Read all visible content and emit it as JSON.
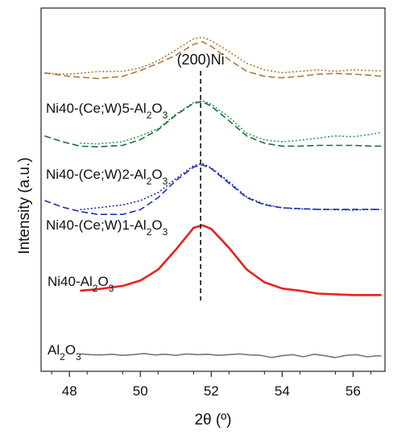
{
  "chart_data": {
    "type": "line",
    "xlabel": "2θ (º)",
    "ylabel": "Intensity (a.u.)",
    "xlim": [
      47.2,
      56.9
    ],
    "xticks": [
      48,
      50,
      52,
      54,
      56
    ],
    "y_ticks_labeled": false,
    "grid": false,
    "legend": "none (labels placed next to curves)",
    "reference_line": {
      "label": "(200)Ni",
      "x": 51.7,
      "style": "dashed"
    },
    "series": [
      {
        "name": "Ni40-(Ce;W)5-Al₂O₃",
        "traces": [
          {
            "style": "dotted",
            "color": "#b07a3a",
            "x": [
              47.3,
              48.0,
              48.8,
              49.5,
              50.0,
              50.5,
              51.0,
              51.5,
              51.75,
              52.0,
              52.5,
              53.0,
              53.5,
              54.0,
              54.5,
              55.0,
              55.5,
              56.0,
              56.5,
              56.8
            ],
            "y": [
              0.82,
              0.818,
              0.825,
              0.826,
              0.835,
              0.855,
              0.885,
              0.915,
              0.92,
              0.91,
              0.88,
              0.848,
              0.83,
              0.822,
              0.826,
              0.83,
              0.826,
              0.83,
              0.828,
              0.827
            ]
          },
          {
            "style": "dashed",
            "color": "#b07a3a",
            "x": [
              47.3,
              48.0,
              48.8,
              49.5,
              50.0,
              50.5,
              51.0,
              51.5,
              51.75,
              52.0,
              52.5,
              53.0,
              53.5,
              54.0,
              54.5,
              55.0,
              55.5,
              56.0,
              56.5,
              56.8
            ],
            "y": [
              0.822,
              0.812,
              0.806,
              0.812,
              0.828,
              0.848,
              0.87,
              0.9,
              0.907,
              0.895,
              0.858,
              0.826,
              0.812,
              0.808,
              0.812,
              0.818,
              0.82,
              0.818,
              0.815,
              0.812
            ]
          }
        ]
      },
      {
        "name": "Ni40-(Ce;W)2-Al₂O₃",
        "traces": [
          {
            "style": "dotted",
            "color": "#2e9c4e",
            "x": [
              48.3,
              48.8,
              49.5,
              50.0,
              50.5,
              51.0,
              51.5,
              51.75,
              52.0,
              52.5,
              53.0,
              53.5,
              54.0,
              54.5,
              55.0,
              55.5,
              56.0,
              56.5,
              56.8
            ],
            "y": [
              0.628,
              0.626,
              0.632,
              0.648,
              0.668,
              0.708,
              0.74,
              0.745,
              0.735,
              0.7,
              0.655,
              0.637,
              0.632,
              0.636,
              0.642,
              0.648,
              0.646,
              0.652,
              0.658
            ]
          },
          {
            "style": "dashed",
            "color": "#1e6e3a",
            "x": [
              47.3,
              47.8,
              48.3,
              48.8,
              49.5,
              50.0,
              50.5,
              51.0,
              51.5,
              51.75,
              52.0,
              52.5,
              53.0,
              53.5,
              54.0,
              54.5,
              55.0,
              55.5,
              56.0,
              56.5,
              56.8
            ],
            "y": [
              0.648,
              0.632,
              0.62,
              0.618,
              0.622,
              0.638,
              0.665,
              0.705,
              0.738,
              0.742,
              0.73,
              0.69,
              0.648,
              0.628,
              0.62,
              0.62,
              0.622,
              0.622,
              0.622,
              0.62,
              0.62
            ]
          }
        ]
      },
      {
        "name": "Ni40-(Ce;W)1-Al₂O₃",
        "traces": [
          {
            "style": "dotted",
            "color": "#1f2fb8",
            "x": [
              48.3,
              48.8,
              49.5,
              50.0,
              50.5,
              51.0,
              51.5,
              51.75,
              52.0,
              52.5,
              53.0,
              53.5,
              54.0,
              54.5,
              55.0,
              55.5,
              56.0,
              56.5,
              56.8
            ],
            "y": [
              0.445,
              0.45,
              0.458,
              0.47,
              0.492,
              0.53,
              0.566,
              0.572,
              0.56,
              0.522,
              0.48,
              0.46,
              0.45,
              0.447,
              0.446,
              0.445,
              0.444,
              0.446,
              0.445
            ]
          },
          {
            "style": "dashed",
            "color": "#1f2fb8",
            "x": [
              47.3,
              47.8,
              48.3,
              48.8,
              49.5,
              50.0,
              50.5,
              51.0,
              51.5,
              51.75,
              52.0,
              52.5,
              53.0,
              53.5,
              54.0,
              54.5,
              55.0,
              55.5,
              56.0,
              56.5,
              56.8
            ],
            "y": [
              0.47,
              0.452,
              0.44,
              0.432,
              0.432,
              0.445,
              0.478,
              0.525,
              0.562,
              0.568,
              0.558,
              0.518,
              0.478,
              0.458,
              0.45,
              0.448,
              0.446,
              0.446,
              0.446,
              0.446,
              0.446
            ]
          }
        ]
      },
      {
        "name": "Ni40-Al₂O₃",
        "traces": [
          {
            "style": "solid",
            "color": "#e8211f",
            "x": [
              48.3,
              48.8,
              49.5,
              50.0,
              50.5,
              51.0,
              51.5,
              51.75,
              52.0,
              52.5,
              53.0,
              53.5,
              54.0,
              54.5,
              55.0,
              55.5,
              56.0,
              56.5,
              56.8
            ],
            "y": [
              0.222,
              0.226,
              0.235,
              0.25,
              0.28,
              0.335,
              0.395,
              0.402,
              0.392,
              0.34,
              0.28,
              0.245,
              0.228,
              0.222,
              0.214,
              0.212,
              0.21,
              0.21,
              0.21
            ]
          }
        ]
      },
      {
        "name": "Al₂O₃",
        "traces": [
          {
            "style": "solid",
            "color": "#777777",
            "x": [
              48.3,
              48.6,
              48.9,
              49.2,
              49.5,
              49.8,
              50.1,
              50.4,
              50.7,
              51.0,
              51.3,
              51.6,
              51.9,
              52.2,
              52.5,
              52.8,
              53.1,
              53.4,
              53.7,
              54.0,
              54.3,
              54.6,
              54.9,
              55.2,
              55.5,
              55.8,
              56.1,
              56.4,
              56.7,
              56.8
            ],
            "y": [
              0.048,
              0.046,
              0.045,
              0.047,
              0.044,
              0.046,
              0.049,
              0.045,
              0.047,
              0.044,
              0.048,
              0.046,
              0.047,
              0.044,
              0.046,
              0.048,
              0.045,
              0.044,
              0.038,
              0.043,
              0.046,
              0.04,
              0.047,
              0.043,
              0.038,
              0.044,
              0.046,
              0.04,
              0.043,
              0.042
            ]
          }
        ]
      }
    ]
  }
}
